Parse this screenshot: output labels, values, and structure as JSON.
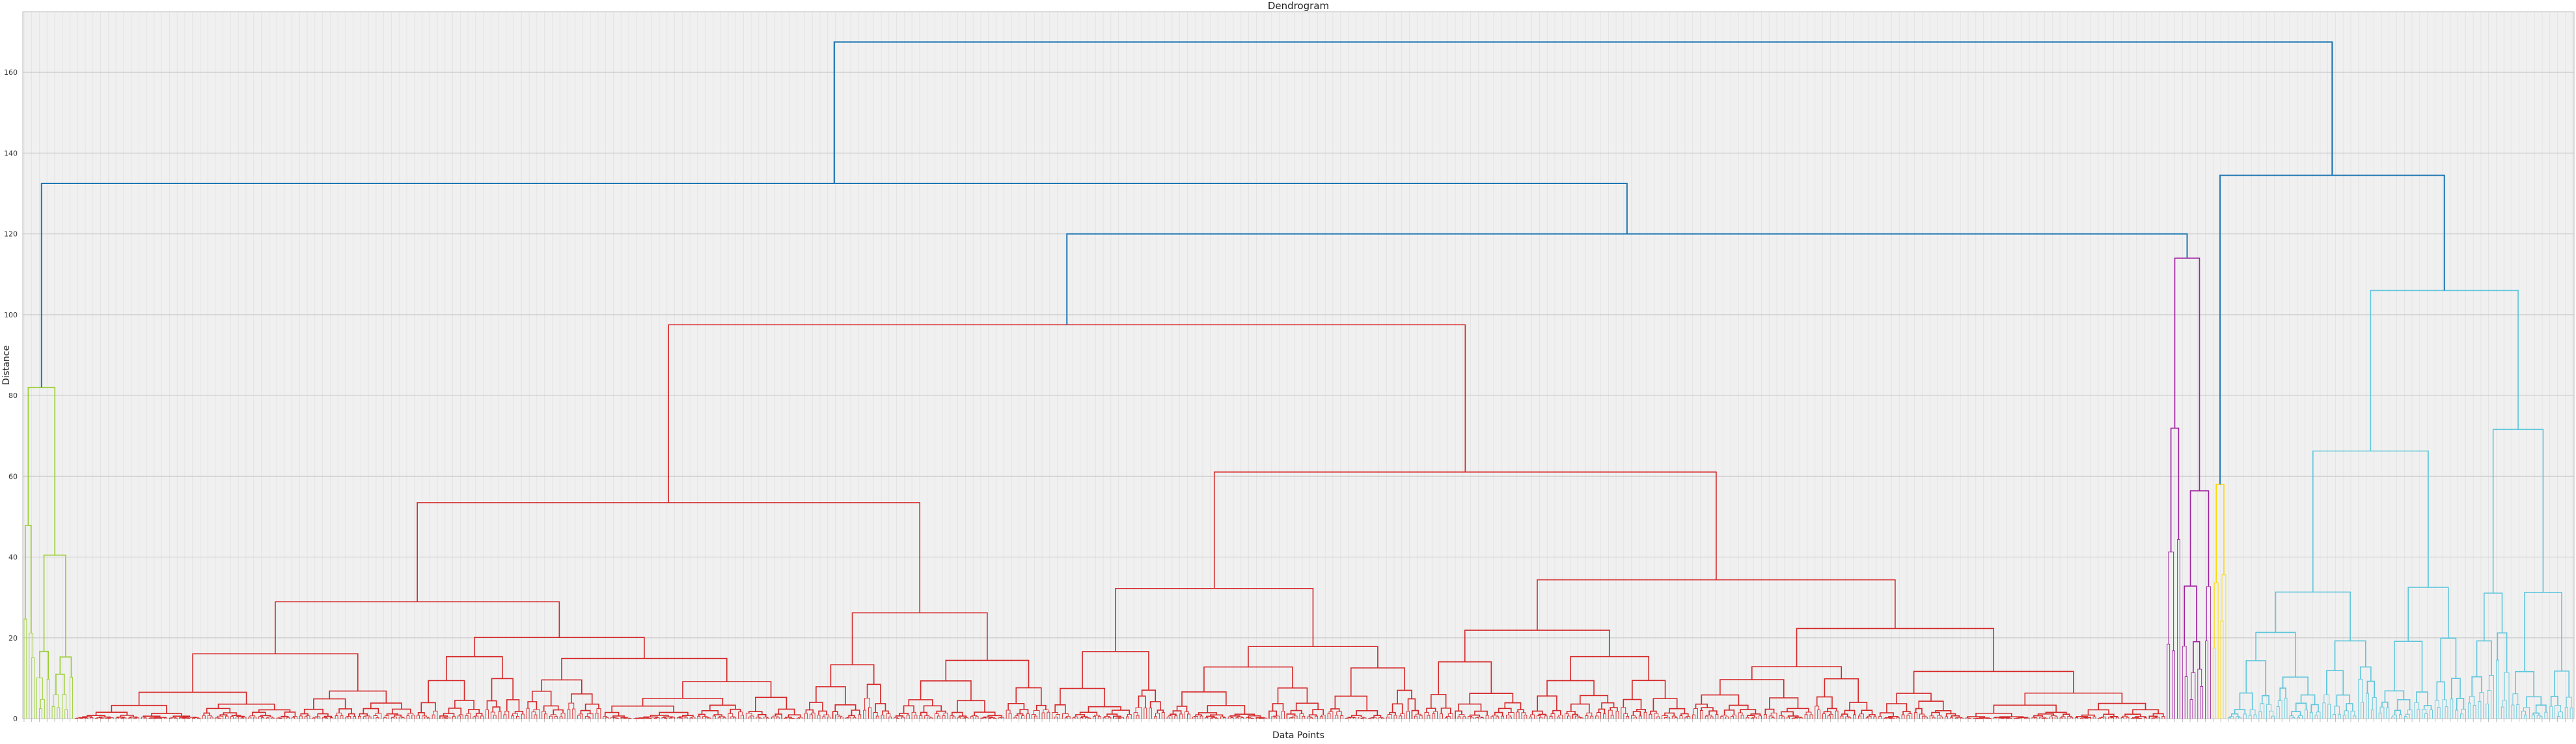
{
  "chart_data": {
    "type": "dendrogram",
    "title": "Dendrogram",
    "xlabel": "Data Points",
    "ylabel": "Distance",
    "ylim": [
      0,
      175
    ],
    "y_ticks": [
      0,
      20,
      40,
      60,
      80,
      100,
      120,
      140,
      160
    ],
    "grid": true,
    "leaf_count": 1000,
    "colors": {
      "background": "#f0f0f0",
      "grid": "#cccccc",
      "link_top": "#1f77b4",
      "cluster_green": "#9acd32",
      "cluster_red": "#d62728",
      "cluster_magenta": "#a020a0",
      "cluster_yellow": "#ffd700",
      "cluster_cyan": "#5fc6dc"
    },
    "top_merges": [
      {
        "height": 167.5,
        "children": [
          "A",
          "B"
        ]
      },
      {
        "height": 132.5,
        "children": [
          "green",
          "C"
        ]
      },
      {
        "height": 134.5,
        "children": [
          "yellow",
          "cyan"
        ]
      },
      {
        "height": 120,
        "children": [
          "red",
          "magenta"
        ]
      },
      {
        "height": 97.5,
        "children": [
          "red-left",
          "red-right"
        ]
      }
    ],
    "clusters": [
      {
        "name": "green",
        "leaves": 20,
        "height": 82,
        "color": "cluster_green"
      },
      {
        "name": "red",
        "leaves": 820,
        "height": 97.5,
        "color": "cluster_red"
      },
      {
        "name": "magenta",
        "leaves": 18,
        "height": 114,
        "color": "cluster_magenta"
      },
      {
        "name": "yellow",
        "leaves": 6,
        "height": 58,
        "color": "cluster_yellow"
      },
      {
        "name": "cyan",
        "leaves": 136,
        "height": 106,
        "color": "cluster_cyan"
      }
    ]
  }
}
